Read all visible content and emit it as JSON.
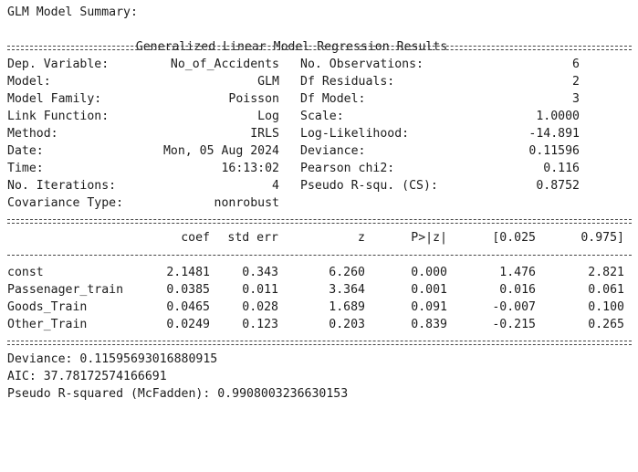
{
  "header": "GLM Model Summary:",
  "title": "Generalized Linear Model Regression Results",
  "info_left": [
    {
      "label": "Dep. Variable:",
      "value": "No_of_Accidents"
    },
    {
      "label": "Model:",
      "value": "GLM"
    },
    {
      "label": "Model Family:",
      "value": "Poisson"
    },
    {
      "label": "Link Function:",
      "value": "Log"
    },
    {
      "label": "Method:",
      "value": "IRLS"
    },
    {
      "label": "Date:",
      "value": "Mon, 05 Aug 2024"
    },
    {
      "label": "Time:",
      "value": "16:13:02"
    },
    {
      "label": "No. Iterations:",
      "value": "4"
    },
    {
      "label": "Covariance Type:",
      "value": "nonrobust"
    }
  ],
  "info_right": [
    {
      "label": "No. Observations:",
      "value": "6"
    },
    {
      "label": "Df Residuals:",
      "value": "2"
    },
    {
      "label": "Df Model:",
      "value": "3"
    },
    {
      "label": "Scale:",
      "value": "1.0000"
    },
    {
      "label": "Log-Likelihood:",
      "value": "-14.891"
    },
    {
      "label": "Deviance:",
      "value": "0.11596"
    },
    {
      "label": "Pearson chi2:",
      "value": "0.116"
    },
    {
      "label": "Pseudo R-squ. (CS):",
      "value": "0.8752"
    }
  ],
  "coef_table": {
    "columns": [
      "coef",
      "std err",
      "z",
      "P>|z|",
      "[0.025",
      "0.975]"
    ],
    "rows": [
      {
        "name": "const",
        "values": [
          "2.1481",
          "0.343",
          "6.260",
          "0.000",
          "1.476",
          "2.821"
        ]
      },
      {
        "name": "Passenager_train",
        "values": [
          "0.0385",
          "0.011",
          "3.364",
          "0.001",
          "0.016",
          "0.061"
        ]
      },
      {
        "name": "Goods_Train",
        "values": [
          "0.0465",
          "0.028",
          "1.689",
          "0.091",
          "-0.007",
          "0.100"
        ]
      },
      {
        "name": "Other_Train",
        "values": [
          "0.0249",
          "0.123",
          "0.203",
          "0.839",
          "-0.215",
          "0.265"
        ]
      }
    ]
  },
  "footer": [
    "Deviance: 0.11595693016880915",
    "AIC: 37.78172574166691",
    "Pseudo R-squared (McFadden): 0.9908003236630153"
  ]
}
